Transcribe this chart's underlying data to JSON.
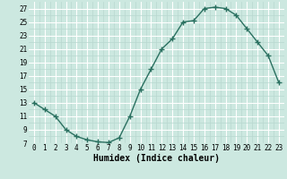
{
  "x": [
    0,
    1,
    2,
    3,
    4,
    5,
    6,
    7,
    8,
    9,
    10,
    11,
    12,
    13,
    14,
    15,
    16,
    17,
    18,
    19,
    20,
    21,
    22,
    23
  ],
  "y": [
    13,
    12,
    11,
    9,
    8,
    7.5,
    7.2,
    7.1,
    7.8,
    11,
    15,
    18,
    21,
    22.5,
    25,
    25.2,
    27,
    27.2,
    27,
    26,
    24,
    22,
    20,
    16
  ],
  "line_color": "#2a7060",
  "marker": "+",
  "marker_size": 4,
  "marker_lw": 1.0,
  "bg_color": "#cce8e0",
  "grid_major_color": "#ffffff",
  "grid_minor_color": "#b8d8d0",
  "xlabel": "Humidex (Indice chaleur)",
  "xlim": [
    -0.5,
    23.5
  ],
  "ylim": [
    7,
    28
  ],
  "yticks": [
    7,
    9,
    11,
    13,
    15,
    17,
    19,
    21,
    23,
    25,
    27
  ],
  "xticks": [
    0,
    1,
    2,
    3,
    4,
    5,
    6,
    7,
    8,
    9,
    10,
    11,
    12,
    13,
    14,
    15,
    16,
    17,
    18,
    19,
    20,
    21,
    22,
    23
  ],
  "tick_labelsize": 5.5,
  "xlabel_fontsize": 7,
  "line_width": 1.0
}
